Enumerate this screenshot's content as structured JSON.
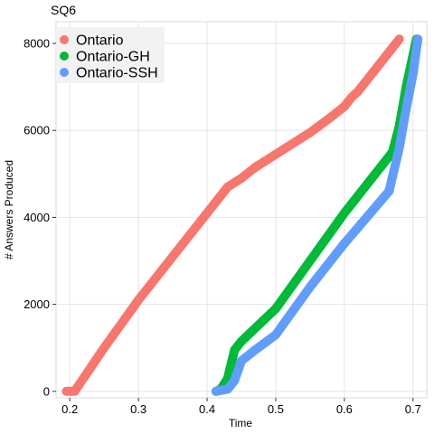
{
  "chart_data": {
    "type": "line",
    "title": "SQ6",
    "xlabel": "Time",
    "ylabel": "# Answers Produced",
    "xlim": [
      0.18,
      0.72
    ],
    "ylim": [
      -150,
      8500
    ],
    "xticks": [
      0.2,
      0.3,
      0.4,
      0.5,
      0.6,
      0.7
    ],
    "xtick_labels": [
      "0.2",
      "0.3",
      "0.4",
      "0.5",
      "0.6",
      "0.7"
    ],
    "yticks": [
      0,
      2000,
      4000,
      6000,
      8000
    ],
    "ytick_labels": [
      "0",
      "2000",
      "4000",
      "6000",
      "8000"
    ],
    "grid": true,
    "legend_position": "top-left",
    "series": [
      {
        "name": "Ontario",
        "color": "#F8766D",
        "points": [
          [
            0.195,
            0
          ],
          [
            0.207,
            0
          ],
          [
            0.22,
            300
          ],
          [
            0.25,
            1000
          ],
          [
            0.3,
            2100
          ],
          [
            0.35,
            3100
          ],
          [
            0.4,
            4100
          ],
          [
            0.43,
            4700
          ],
          [
            0.45,
            4900
          ],
          [
            0.47,
            5150
          ],
          [
            0.5,
            5450
          ],
          [
            0.55,
            5950
          ],
          [
            0.58,
            6300
          ],
          [
            0.6,
            6550
          ],
          [
            0.61,
            6750
          ],
          [
            0.62,
            6900
          ],
          [
            0.625,
            7000
          ],
          [
            0.65,
            7500
          ],
          [
            0.68,
            8100
          ]
        ]
      },
      {
        "name": "Ontario-GH",
        "color": "#00BA38",
        "points": [
          [
            0.413,
            0
          ],
          [
            0.42,
            50
          ],
          [
            0.43,
            300
          ],
          [
            0.44,
            950
          ],
          [
            0.45,
            1150
          ],
          [
            0.5,
            1900
          ],
          [
            0.55,
            3000
          ],
          [
            0.6,
            4100
          ],
          [
            0.67,
            5500
          ],
          [
            0.68,
            6100
          ],
          [
            0.69,
            7000
          ],
          [
            0.705,
            8100
          ]
        ]
      },
      {
        "name": "Ontario-SSH",
        "color": "#619CFF",
        "points": [
          [
            0.413,
            0
          ],
          [
            0.43,
            50
          ],
          [
            0.44,
            250
          ],
          [
            0.45,
            700
          ],
          [
            0.47,
            950
          ],
          [
            0.5,
            1300
          ],
          [
            0.55,
            2400
          ],
          [
            0.6,
            3400
          ],
          [
            0.665,
            4600
          ],
          [
            0.68,
            5600
          ],
          [
            0.69,
            6500
          ],
          [
            0.7,
            7300
          ],
          [
            0.707,
            8100
          ]
        ]
      }
    ]
  }
}
